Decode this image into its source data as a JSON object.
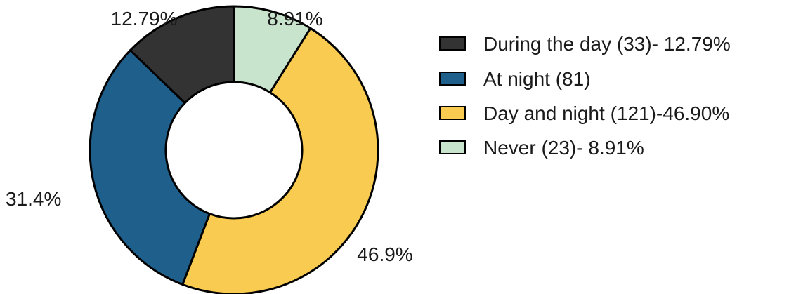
{
  "chart_data": {
    "type": "pie",
    "variant": "donut",
    "title": "",
    "categories": [
      "During the day (33)- 12.79%",
      "At night (81)",
      "Day and night (121)-46.90%",
      "Never (23)- 8.91%"
    ],
    "counts": [
      33,
      81,
      121,
      23
    ],
    "values": [
      12.79,
      31.4,
      46.9,
      8.91
    ],
    "slice_labels": [
      "12.79%",
      "31.4%",
      "46.9%",
      "8.91%"
    ],
    "colors": [
      "#333333",
      "#1f5f8b",
      "#f9cb51",
      "#c9e4cc"
    ],
    "start_angle_deg": 0,
    "direction": "clockwise",
    "legend": {
      "position": "right",
      "entries": [
        "During the day (33)- 12.79%",
        "At night (81)",
        "Day and night (121)-46.90%",
        "Never (23)- 8.91%"
      ]
    }
  }
}
